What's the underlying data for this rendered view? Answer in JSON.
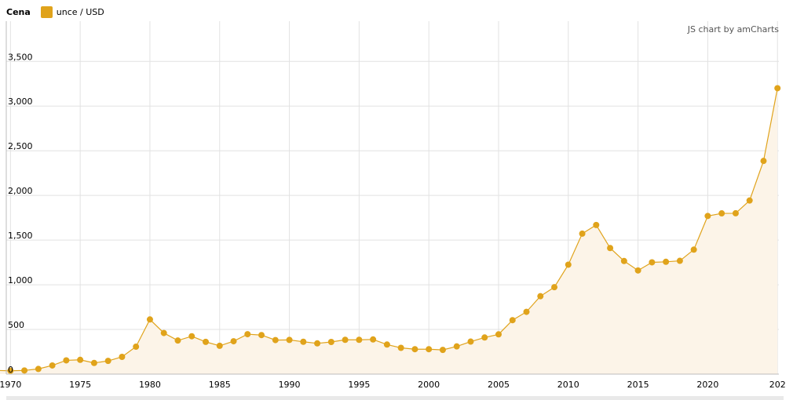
{
  "legend": {
    "title": "Cena",
    "series_label": "unce / USD"
  },
  "credit": "JS chart by amCharts",
  "colors": {
    "series": "#E0A31B",
    "fill": "#FCF4E8",
    "grid": "#e2e2e2",
    "axis": "#bdbdbd"
  },
  "chart_data": {
    "type": "area",
    "title": "",
    "xlabel": "",
    "ylabel": "",
    "x_tick_labels": [
      "1970",
      "1975",
      "1980",
      "1985",
      "1990",
      "1995",
      "2000",
      "2005",
      "2010",
      "2015",
      "2020",
      "202"
    ],
    "y_tick_labels": [
      "0",
      "500",
      "1,000",
      "1,500",
      "2,000",
      "2,500",
      "3,000",
      "3,500"
    ],
    "ylim": [
      0,
      3950
    ],
    "xlim": [
      1969.7,
      2025.1
    ],
    "grid": true,
    "legend_position": "top-left",
    "series": [
      {
        "name": "unce / USD",
        "x": [
          1969,
          1970,
          1971,
          1972,
          1973,
          1974,
          1975,
          1976,
          1977,
          1978,
          1979,
          1980,
          1981,
          1982,
          1983,
          1984,
          1985,
          1986,
          1987,
          1988,
          1989,
          1990,
          1991,
          1992,
          1993,
          1994,
          1995,
          1996,
          1997,
          1998,
          1999,
          2000,
          2001,
          2002,
          2003,
          2004,
          2005,
          2006,
          2007,
          2008,
          2009,
          2010,
          2011,
          2012,
          2013,
          2014,
          2015,
          2016,
          2017,
          2018,
          2019,
          2020,
          2021,
          2022,
          2023,
          2024,
          2025
        ],
        "values": [
          41,
          37,
          41,
          58,
          97,
          154,
          160,
          125,
          148,
          193,
          307,
          612,
          460,
          376,
          424,
          361,
          317,
          368,
          447,
          437,
          381,
          383,
          362,
          344,
          360,
          384,
          384,
          388,
          331,
          294,
          279,
          279,
          271,
          310,
          364,
          410,
          445,
          604,
          697,
          872,
          973,
          1225,
          1572,
          1669,
          1411,
          1266,
          1160,
          1251,
          1257,
          1268,
          1393,
          1770,
          1799,
          1800,
          1943,
          2386,
          3200
        ]
      }
    ]
  }
}
